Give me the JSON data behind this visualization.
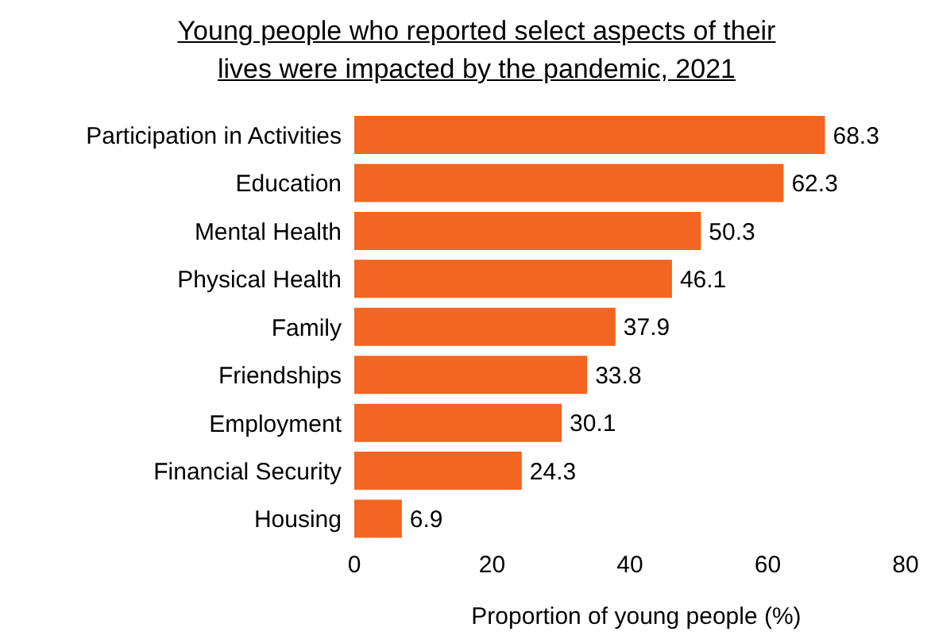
{
  "chart_data": {
    "type": "bar",
    "orientation": "horizontal",
    "title": "Young people who reported select aspects of their lives were impacted by the pandemic, 2021",
    "xlabel": "Proportion of young people (%)",
    "categories": [
      "Participation in Activities",
      "Education",
      "Mental Health",
      "Physical Health",
      "Family",
      "Friendships",
      "Employment",
      "Financial Security",
      "Housing"
    ],
    "values": [
      68.3,
      62.3,
      50.3,
      46.1,
      37.9,
      33.8,
      30.1,
      24.3,
      6.9
    ],
    "color": "#f26522",
    "xlim": [
      0,
      80
    ],
    "xticks": [
      0,
      20,
      40,
      60,
      80
    ],
    "data_labels": true,
    "grid": false,
    "legend": false
  }
}
